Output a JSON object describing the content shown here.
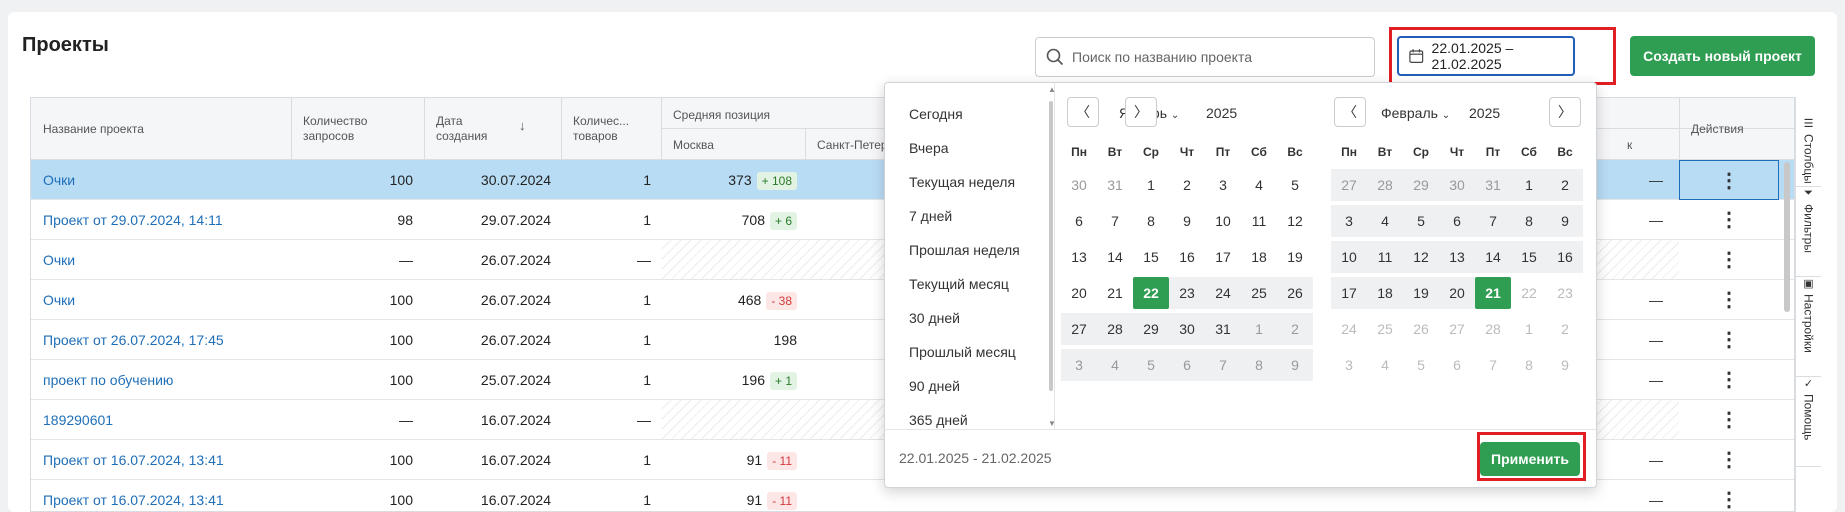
{
  "page": {
    "title": "Проекты"
  },
  "search": {
    "placeholder": "Поиск по названию проекта"
  },
  "daterange": {
    "value": "22.01.2025 – 21.02.2025"
  },
  "create_button": "Создать новый проект",
  "table": {
    "headers": {
      "name": "Название проекта",
      "requests": "Количество запросов",
      "created": "Дата создания",
      "products": "Количес... товаров",
      "avg_position": "Средняя позиция",
      "moscow": "Москва",
      "spb": "Санкт-Петер",
      "partial_right": "к",
      "actions": "Действия"
    },
    "rows": [
      {
        "name": "Очки",
        "requests": "100",
        "created": "30.07.2024",
        "products": "1",
        "moscow": "373",
        "delta": "+ 108",
        "delta_type": "pos",
        "right": "—"
      },
      {
        "name": "Проект от 29.07.2024, 14:11",
        "requests": "98",
        "created": "29.07.2024",
        "products": "1",
        "moscow": "708",
        "delta": "+ 6",
        "delta_type": "pos",
        "right": "—"
      },
      {
        "name": "Очки",
        "requests": "—",
        "created": "26.07.2024",
        "products": "—",
        "moscow": "",
        "delta": "",
        "delta_type": "hatch",
        "right": ""
      },
      {
        "name": "Очки",
        "requests": "100",
        "created": "26.07.2024",
        "products": "1",
        "moscow": "468",
        "delta": "- 38",
        "delta_type": "neg",
        "right": "—"
      },
      {
        "name": "Проект от 26.07.2024, 17:45",
        "requests": "100",
        "created": "26.07.2024",
        "products": "1",
        "moscow": "198",
        "delta": "",
        "delta_type": "none",
        "right": "—"
      },
      {
        "name": "проект по обучению",
        "requests": "100",
        "created": "25.07.2024",
        "products": "1",
        "moscow": "196",
        "delta": "+ 1",
        "delta_type": "pos",
        "right": "—"
      },
      {
        "name": "189290601",
        "requests": "—",
        "created": "16.07.2024",
        "products": "—",
        "moscow": "",
        "delta": "",
        "delta_type": "hatch",
        "right": ""
      },
      {
        "name": "Проект от 16.07.2024, 13:41",
        "requests": "100",
        "created": "16.07.2024",
        "products": "1",
        "moscow": "91",
        "delta": "- 11",
        "delta_type": "neg",
        "right": "—"
      },
      {
        "name": "Проект от 16.07.2024, 13:41",
        "requests": "100",
        "created": "16.07.2024",
        "products": "1",
        "moscow": "91",
        "delta": "- 11",
        "delta_type": "neg",
        "right": "—"
      }
    ]
  },
  "side_tabs": [
    "Столбцы",
    "Фильтры",
    "Настройки",
    "Помощь"
  ],
  "datepicker": {
    "presets": [
      "Сегодня",
      "Вчера",
      "Текущая неделя",
      "7 дней",
      "Прошлая неделя",
      "Текущий месяц",
      "30 дней",
      "Прошлый месяц",
      "90 дней",
      "365 дней"
    ],
    "weekdays": [
      "Пн",
      "Вт",
      "Ср",
      "Чт",
      "Пт",
      "Сб",
      "Вс"
    ],
    "left": {
      "month": "Январь",
      "year": "2025",
      "weeks": [
        [
          "30",
          "31",
          "1",
          "2",
          "3",
          "4",
          "5"
        ],
        [
          "6",
          "7",
          "8",
          "9",
          "10",
          "11",
          "12"
        ],
        [
          "13",
          "14",
          "15",
          "16",
          "17",
          "18",
          "19"
        ],
        [
          "20",
          "21",
          "22",
          "23",
          "24",
          "25",
          "26"
        ],
        [
          "27",
          "28",
          "29",
          "30",
          "31",
          "1",
          "2"
        ],
        [
          "3",
          "4",
          "5",
          "6",
          "7",
          "8",
          "9"
        ]
      ]
    },
    "right": {
      "month": "Февраль",
      "year": "2025",
      "weeks": [
        [
          "27",
          "28",
          "29",
          "30",
          "31",
          "1",
          "2"
        ],
        [
          "3",
          "4",
          "5",
          "6",
          "7",
          "8",
          "9"
        ],
        [
          "10",
          "11",
          "12",
          "13",
          "14",
          "15",
          "16"
        ],
        [
          "17",
          "18",
          "19",
          "20",
          "21",
          "22",
          "23"
        ],
        [
          "24",
          "25",
          "26",
          "27",
          "28",
          "1",
          "2"
        ],
        [
          "3",
          "4",
          "5",
          "6",
          "7",
          "8",
          "9"
        ]
      ]
    },
    "range_text": "22.01.2025 - 21.02.2025",
    "apply_label": "Применить"
  },
  "icons": {
    "nav_prev": "chevron-left-icon",
    "nav_next": "chevron-right-icon",
    "calendar": "calendar-icon",
    "search": "search-icon",
    "sort": "arrow-down-icon",
    "kebab": "kebab-menu-icon"
  },
  "colors": {
    "accent_green": "#2f9e52",
    "link_blue": "#1f6fb8",
    "selected_row": "#b9dcf5",
    "highlight_red": "#e01e24"
  }
}
